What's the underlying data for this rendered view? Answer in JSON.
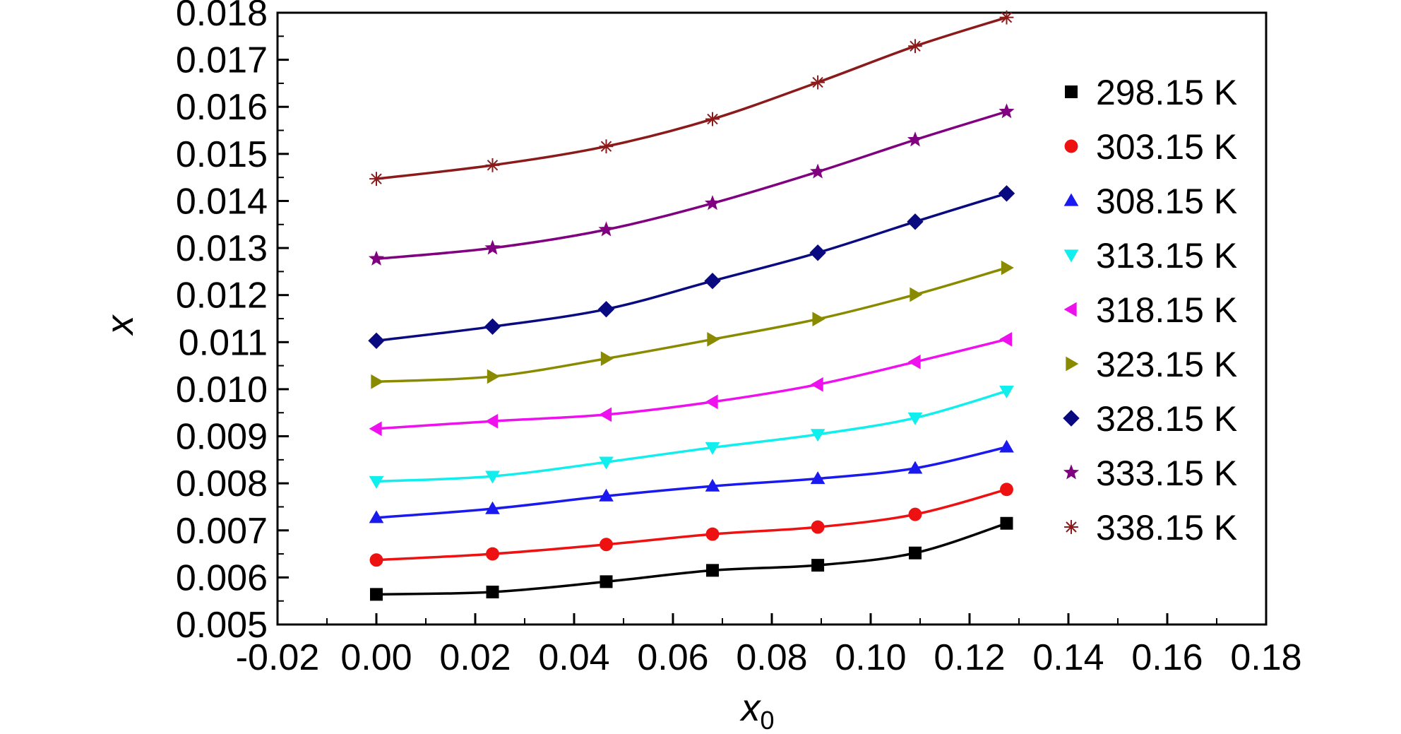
{
  "chart_data": {
    "type": "line",
    "xlabel": "x",
    "xlabel_sub": "0",
    "ylabel": "x",
    "xlim": [
      -0.02,
      0.18
    ],
    "ylim": [
      0.005,
      0.018
    ],
    "x_ticks": [
      "-0.02",
      "0.00",
      "0.02",
      "0.04",
      "0.06",
      "0.08",
      "0.10",
      "0.12",
      "0.14",
      "0.16",
      "0.18"
    ],
    "y_ticks": [
      "0.005",
      "0.006",
      "0.007",
      "0.008",
      "0.009",
      "0.010",
      "0.011",
      "0.012",
      "0.013",
      "0.014",
      "0.015",
      "0.016",
      "0.017",
      "0.018"
    ],
    "legend_position": "right",
    "x": [
      0.0,
      0.0235,
      0.0465,
      0.068,
      0.0893,
      0.109,
      0.1275
    ],
    "series": [
      {
        "name": "298.15 K",
        "color": "#000000",
        "marker": "square",
        "values": [
          0.00564,
          0.00569,
          0.00591,
          0.00615,
          0.00626,
          0.00652,
          0.00715
        ]
      },
      {
        "name": "303.15 K",
        "color": "#ee1111",
        "marker": "circle",
        "values": [
          0.00637,
          0.0065,
          0.0067,
          0.00692,
          0.00707,
          0.00734,
          0.00787
        ]
      },
      {
        "name": "308.15 K",
        "color": "#1a1aee",
        "marker": "triangle-up",
        "values": [
          0.00727,
          0.00746,
          0.00773,
          0.00794,
          0.0081,
          0.00832,
          0.00877
        ]
      },
      {
        "name": "313.15 K",
        "color": "#11eeee",
        "marker": "triangle-down",
        "values": [
          0.00804,
          0.00815,
          0.00845,
          0.00876,
          0.00904,
          0.00939,
          0.00996
        ]
      },
      {
        "name": "318.15 K",
        "color": "#ee11ee",
        "marker": "triangle-left",
        "values": [
          0.00916,
          0.00932,
          0.00946,
          0.00973,
          0.0101,
          0.01058,
          0.01106
        ]
      },
      {
        "name": "323.15 K",
        "color": "#8a8a00",
        "marker": "triangle-right",
        "values": [
          0.01016,
          0.01027,
          0.01065,
          0.01106,
          0.01149,
          0.01201,
          0.01258
        ]
      },
      {
        "name": "328.15 K",
        "color": "#0a0a80",
        "marker": "diamond",
        "values": [
          0.01103,
          0.01133,
          0.0117,
          0.0123,
          0.0129,
          0.01356,
          0.01416
        ]
      },
      {
        "name": "333.15 K",
        "color": "#800080",
        "marker": "star",
        "values": [
          0.01277,
          0.013,
          0.01339,
          0.01395,
          0.01462,
          0.0153,
          0.0159
        ]
      },
      {
        "name": "338.15 K",
        "color": "#8b1a1a",
        "marker": "asterisk",
        "values": [
          0.01447,
          0.01476,
          0.01516,
          0.01574,
          0.01652,
          0.01729,
          0.0179
        ]
      }
    ]
  }
}
